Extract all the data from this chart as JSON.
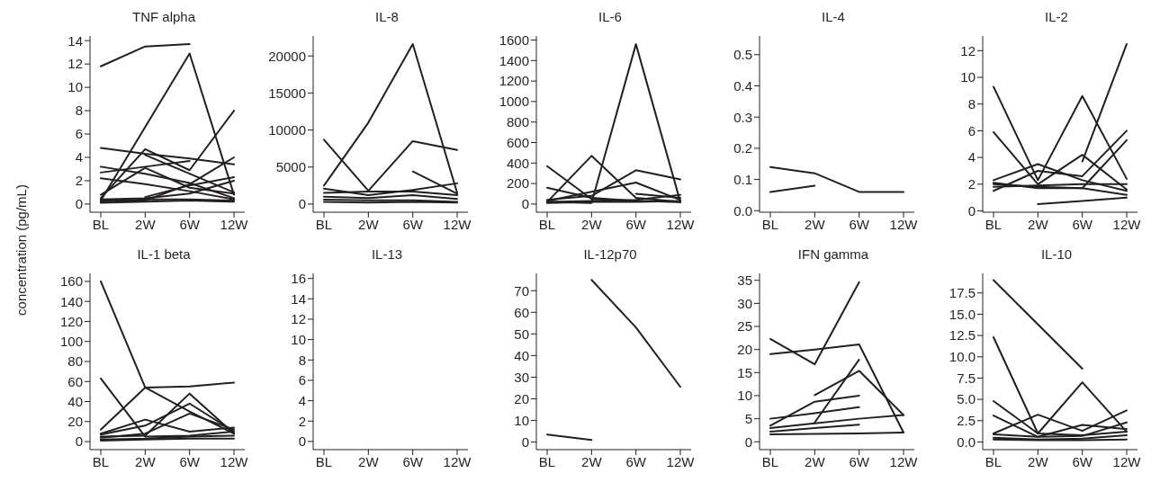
{
  "chart_data": [
    {
      "type": "line",
      "title": "TNF alpha",
      "ylabel": "concentration (pg/mL)",
      "color": "#231f20",
      "categories": [
        "BL",
        "2W",
        "6W",
        "12W"
      ],
      "ylim": [
        -0.7,
        14.4
      ],
      "yticks": [
        0,
        2,
        4,
        6,
        8,
        10,
        12,
        14
      ],
      "series": [
        {
          "values": [
            11.8,
            13.5,
            13.7,
            null
          ]
        },
        {
          "values": [
            0.3,
            6.6,
            12.9,
            0.8
          ]
        },
        {
          "values": [
            4.8,
            4.3,
            3.9,
            3.4
          ]
        },
        {
          "values": [
            0.5,
            4.7,
            2.9,
            8.0
          ]
        },
        {
          "values": [
            3.2,
            2.6,
            1.8,
            0.5
          ]
        },
        {
          "values": [
            2.7,
            3.2,
            3.7,
            null
          ]
        },
        {
          "values": [
            2.2,
            1.7,
            1.1,
            0.4
          ]
        },
        {
          "values": [
            0.8,
            3.1,
            1.4,
            0.9
          ]
        },
        {
          "values": [
            null,
            4.2,
            2.6,
            1.0
          ]
        },
        {
          "values": [
            null,
            0.6,
            1.6,
            2.3
          ]
        },
        {
          "values": [
            0.3,
            0.3,
            1.7,
            4.0
          ]
        },
        {
          "values": [
            0.2,
            0.4,
            0.4,
            0.3
          ]
        },
        {
          "values": [
            0.1,
            0.2,
            0.3,
            0.2
          ]
        },
        {
          "values": [
            0.4,
            0.5,
            0.9,
            2.0
          ]
        }
      ]
    },
    {
      "type": "line",
      "title": "IL-8",
      "color": "#231f20",
      "categories": [
        "BL",
        "2W",
        "6W",
        "12W"
      ],
      "ylim": [
        -1100,
        22700
      ],
      "yticks": [
        0,
        5000,
        10000,
        15000,
        20000
      ],
      "series": [
        {
          "values": [
            2500,
            11000,
            21600,
            1500
          ]
        },
        {
          "values": [
            8700,
            1800,
            8500,
            7300
          ]
        },
        {
          "values": [
            null,
            null,
            4400,
            1400
          ]
        },
        {
          "values": [
            2100,
            1200,
            1900,
            2800
          ]
        },
        {
          "values": [
            1500,
            1700,
            1700,
            1200
          ]
        },
        {
          "values": [
            1000,
            800,
            1200,
            700
          ]
        },
        {
          "values": [
            600,
            500,
            500,
            300
          ]
        },
        {
          "values": [
            300,
            200,
            300,
            200
          ]
        }
      ]
    },
    {
      "type": "line",
      "title": "IL-6",
      "color": "#231f20",
      "categories": [
        "BL",
        "2W",
        "6W",
        "12W"
      ],
      "ylim": [
        -80,
        1640
      ],
      "yticks": [
        0,
        200,
        400,
        600,
        800,
        1000,
        1200,
        1400,
        1600
      ],
      "series": [
        {
          "values": [
            20,
            10,
            1560,
            20
          ]
        },
        {
          "values": [
            370,
            50,
            30,
            20
          ]
        },
        {
          "values": [
            20,
            470,
            60,
            20
          ]
        },
        {
          "values": [
            160,
            60,
            30,
            20
          ]
        },
        {
          "values": [
            40,
            80,
            330,
            240
          ]
        },
        {
          "values": [
            30,
            120,
            210,
            40
          ]
        },
        {
          "values": [
            null,
            null,
            100,
            60
          ]
        },
        {
          "values": [
            20,
            30,
            40,
            90
          ]
        },
        {
          "values": [
            10,
            20,
            20,
            30
          ]
        }
      ]
    },
    {
      "type": "line",
      "title": "IL-4",
      "color": "#231f20",
      "categories": [
        "BL",
        "2W",
        "6W",
        "12W"
      ],
      "ylim": [
        -0.005,
        0.56
      ],
      "yticks": [
        {
          "value": 0,
          "label": "0.0"
        },
        {
          "value": 0.1,
          "label": "0.1"
        },
        {
          "value": 0.2,
          "label": "0.2"
        },
        {
          "value": 0.3,
          "label": "0.3"
        },
        {
          "value": 0.4,
          "label": "0.4"
        },
        {
          "value": 0.5,
          "label": "0.5"
        }
      ],
      "series": [
        {
          "values": [
            0.14,
            0.12,
            0.06,
            0.06
          ]
        },
        {
          "values": [
            0.06,
            0.08,
            null,
            null
          ]
        }
      ]
    },
    {
      "type": "line",
      "title": "IL-2",
      "color": "#231f20",
      "categories": [
        "BL",
        "2W",
        "6W",
        "12W"
      ],
      "ylim": [
        -0.1,
        13.1
      ],
      "yticks": [
        0,
        2,
        4,
        6,
        8,
        10,
        12
      ],
      "series": [
        {
          "values": [
            9.3,
            2.3,
            8.6,
            2.4
          ]
        },
        {
          "values": [
            5.9,
            2.0,
            4.2,
            1.6
          ]
        },
        {
          "values": [
            null,
            null,
            3.7,
            12.5
          ]
        },
        {
          "values": [
            2.3,
            3.5,
            2.3,
            1.5
          ]
        },
        {
          "values": [
            1.5,
            3.0,
            2.6,
            6.0
          ]
        },
        {
          "values": [
            2.0,
            1.8,
            1.7,
            5.3
          ]
        },
        {
          "values": [
            1.8,
            1.9,
            2.0,
            2.0
          ]
        },
        {
          "values": [
            null,
            0.5,
            0.75,
            1.0
          ]
        },
        {
          "values": [
            2.1,
            1.7,
            1.7,
            1.2
          ]
        }
      ]
    },
    {
      "type": "line",
      "title": "IL-1 beta",
      "color": "#231f20",
      "categories": [
        "BL",
        "2W",
        "6W",
        "12W"
      ],
      "ylim": [
        -8,
        168
      ],
      "yticks": [
        0,
        20,
        40,
        60,
        80,
        100,
        120,
        140,
        160
      ],
      "series": [
        {
          "values": [
            160,
            54,
            55,
            59
          ]
        },
        {
          "values": [
            63,
            5,
            6,
            10
          ]
        },
        {
          "values": [
            12,
            54,
            30,
            8
          ]
        },
        {
          "values": [
            8,
            22,
            10,
            14
          ]
        },
        {
          "values": [
            7,
            16,
            38,
            10
          ]
        },
        {
          "values": [
            5,
            6,
            48,
            8
          ]
        },
        {
          "values": [
            4,
            8,
            28,
            12
          ]
        },
        {
          "values": [
            2,
            3,
            5,
            6
          ]
        },
        {
          "values": [
            1,
            2,
            3,
            3
          ]
        }
      ]
    },
    {
      "type": "line",
      "title": "IL-13",
      "color": "#231f20",
      "categories": [
        "BL",
        "2W",
        "6W",
        "12W"
      ],
      "ylim": [
        -0.8,
        16.5
      ],
      "yticks": [
        0,
        2,
        4,
        6,
        8,
        10,
        12,
        14,
        16
      ]
    },
    {
      "type": "line",
      "title": "IL-12p70",
      "color": "#231f20",
      "categories": [
        "BL",
        "2W",
        "6W",
        "12W"
      ],
      "ylim": [
        -3.5,
        78
      ],
      "yticks": [
        0,
        10,
        20,
        30,
        40,
        50,
        60,
        70
      ],
      "series": [
        {
          "values": [
            3.5,
            1.0,
            null,
            null
          ]
        },
        {
          "values": [
            null,
            75,
            53,
            25.5
          ]
        }
      ]
    },
    {
      "type": "line",
      "title": "IFN gamma",
      "color": "#231f20",
      "categories": [
        "BL",
        "2W",
        "6W",
        "12W"
      ],
      "ylim": [
        -1.7,
        36.5
      ],
      "yticks": [
        0,
        5,
        10,
        15,
        20,
        25,
        30,
        35
      ],
      "series": [
        {
          "values": [
            22.3,
            16.8,
            34.6,
            null
          ]
        },
        {
          "values": [
            19.0,
            20.0,
            21.1,
            2.0
          ]
        },
        {
          "values": [
            3.5,
            8.7,
            10.0,
            null
          ]
        },
        {
          "values": [
            null,
            4.2,
            17.8,
            null
          ]
        },
        {
          "values": [
            null,
            10.1,
            15.4,
            5.8
          ]
        },
        {
          "values": [
            5.0,
            6.2,
            7.5,
            null
          ]
        },
        {
          "values": [
            3.0,
            4.0,
            5.0,
            5.8
          ]
        },
        {
          "values": [
            2.2,
            3.0,
            3.7,
            null
          ]
        },
        {
          "values": [
            1.6,
            1.7,
            1.8,
            2.0
          ]
        }
      ]
    },
    {
      "type": "line",
      "title": "IL-10",
      "color": "#231f20",
      "categories": [
        "BL",
        "2W",
        "6W",
        "12W"
      ],
      "ylim": [
        -0.9,
        19.8
      ],
      "yticks": [
        {
          "value": 0,
          "label": "0.0"
        },
        {
          "value": 2.5,
          "label": "2.5"
        },
        {
          "value": 5,
          "label": "5.0"
        },
        {
          "value": 7.5,
          "label": "7.5"
        },
        {
          "value": 10,
          "label": "10.0"
        },
        {
          "value": 12.5,
          "label": "12.5"
        },
        {
          "value": 15,
          "label": "15.0"
        },
        {
          "value": 17.5,
          "label": "17.5"
        }
      ],
      "series": [
        {
          "values": [
            19.0,
            13.8,
            8.6,
            null
          ]
        },
        {
          "values": [
            12.3,
            1.0,
            7.0,
            1.2
          ]
        },
        {
          "values": [
            4.8,
            1.0,
            0.8,
            1.2
          ]
        },
        {
          "values": [
            3.1,
            0.6,
            2.0,
            1.5
          ]
        },
        {
          "values": [
            1.0,
            3.2,
            1.3,
            3.7
          ]
        },
        {
          "values": [
            0.9,
            0.6,
            0.7,
            2.3
          ]
        },
        {
          "values": [
            0.5,
            0.3,
            0.4,
            0.8
          ]
        },
        {
          "values": [
            0.3,
            0.2,
            0.2,
            0.3
          ]
        }
      ]
    }
  ]
}
